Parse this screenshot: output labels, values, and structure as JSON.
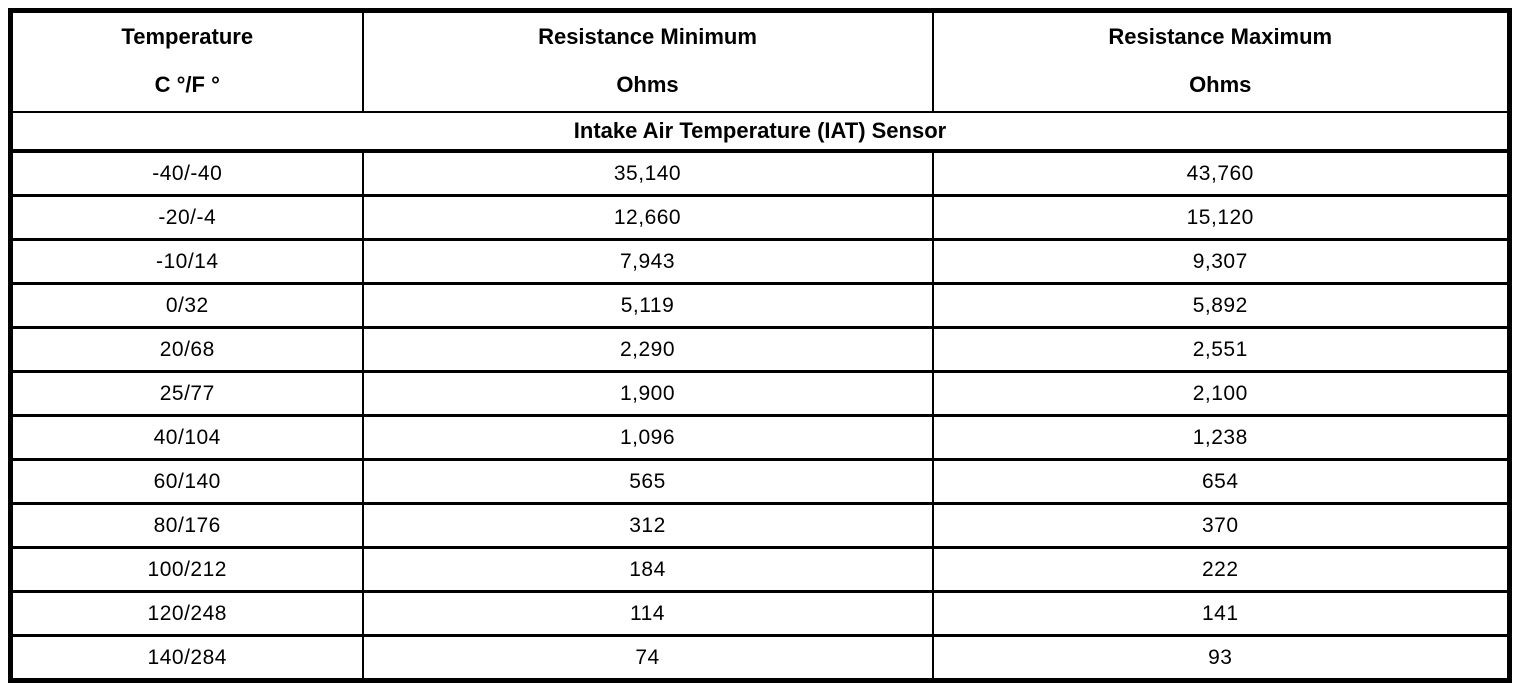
{
  "table": {
    "columns": [
      {
        "title": "Temperature",
        "subtitle": "C °/F °"
      },
      {
        "title": "Resistance Minimum",
        "subtitle": "Ohms"
      },
      {
        "title": "Resistance Maximum",
        "subtitle": "Ohms"
      }
    ],
    "section_title": "Intake Air Temperature (IAT) Sensor",
    "rows": [
      [
        "-40/-40",
        "35,140",
        "43,760"
      ],
      [
        "-20/-4",
        "12,660",
        "15,120"
      ],
      [
        "-10/14",
        "7,943",
        "9,307"
      ],
      [
        "0/32",
        "5,119",
        "5,892"
      ],
      [
        "20/68",
        "2,290",
        "2,551"
      ],
      [
        "25/77",
        "1,900",
        "2,100"
      ],
      [
        "40/104",
        "1,096",
        "1,238"
      ],
      [
        "60/140",
        "565",
        "654"
      ],
      [
        "80/176",
        "312",
        "370"
      ],
      [
        "100/212",
        "184",
        "222"
      ],
      [
        "120/248",
        "114",
        "141"
      ],
      [
        "140/284",
        "74",
        "93"
      ]
    ],
    "colors": {
      "border": "#000000",
      "text": "#000000",
      "background": "#ffffff"
    }
  }
}
